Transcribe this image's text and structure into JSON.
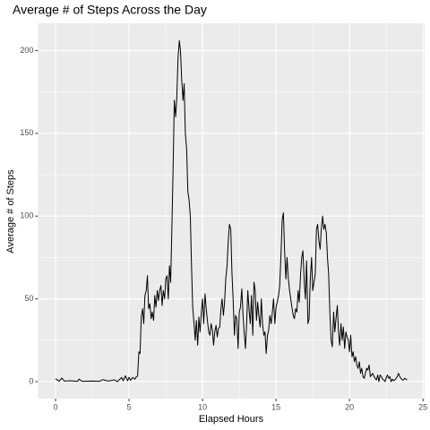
{
  "chart_data": {
    "type": "line",
    "title": "Average # of Steps Across the Day",
    "xlabel": "Elapsed Hours",
    "ylabel": "Average # of Steps",
    "x": [
      0,
      0.25,
      0.42,
      0.6,
      1.0,
      1.5,
      1.6,
      1.8,
      2.5,
      3.0,
      3.2,
      3.6,
      4.0,
      4.2,
      4.5,
      4.6,
      4.75,
      4.9,
      5.0,
      5.1,
      5.25,
      5.4,
      5.5,
      5.58,
      5.67,
      5.75,
      5.83,
      5.92,
      6.0,
      6.08,
      6.17,
      6.25,
      6.33,
      6.42,
      6.5,
      6.58,
      6.67,
      6.75,
      6.83,
      6.92,
      7.0,
      7.08,
      7.17,
      7.25,
      7.33,
      7.42,
      7.5,
      7.58,
      7.67,
      7.75,
      7.83,
      7.92,
      8.0,
      8.08,
      8.17,
      8.25,
      8.33,
      8.42,
      8.5,
      8.58,
      8.67,
      8.75,
      8.83,
      8.92,
      9.0,
      9.08,
      9.17,
      9.25,
      9.33,
      9.42,
      9.5,
      9.58,
      9.67,
      9.75,
      9.83,
      9.92,
      10.0,
      10.08,
      10.17,
      10.25,
      10.33,
      10.42,
      10.5,
      10.58,
      10.67,
      10.75,
      10.83,
      10.92,
      11.0,
      11.08,
      11.17,
      11.25,
      11.33,
      11.42,
      11.5,
      11.58,
      11.67,
      11.75,
      11.83,
      11.92,
      12.0,
      12.08,
      12.17,
      12.25,
      12.33,
      12.42,
      12.5,
      12.58,
      12.67,
      12.75,
      12.83,
      12.92,
      13.0,
      13.08,
      13.17,
      13.25,
      13.33,
      13.42,
      13.5,
      13.58,
      13.67,
      13.75,
      13.83,
      13.92,
      14.0,
      14.08,
      14.17,
      14.25,
      14.33,
      14.42,
      14.5,
      14.58,
      14.67,
      14.75,
      14.83,
      14.92,
      15.0,
      15.08,
      15.17,
      15.25,
      15.33,
      15.42,
      15.5,
      15.58,
      15.67,
      15.75,
      15.83,
      15.92,
      16.0,
      16.08,
      16.17,
      16.25,
      16.33,
      16.42,
      16.5,
      16.58,
      16.67,
      16.75,
      16.83,
      16.92,
      17.0,
      17.08,
      17.17,
      17.25,
      17.33,
      17.42,
      17.5,
      17.58,
      17.67,
      17.75,
      17.83,
      17.92,
      18.0,
      18.08,
      18.17,
      18.25,
      18.33,
      18.42,
      18.5,
      18.58,
      18.67,
      18.75,
      18.83,
      18.92,
      19.0,
      19.08,
      19.17,
      19.25,
      19.33,
      19.42,
      19.5,
      19.58,
      19.67,
      19.75,
      19.83,
      19.92,
      20.0,
      20.08,
      20.17,
      20.25,
      20.33,
      20.42,
      20.5,
      20.58,
      20.67,
      20.75,
      20.83,
      20.92,
      21.0,
      21.08,
      21.17,
      21.25,
      21.33,
      21.42,
      21.5,
      21.58,
      21.67,
      21.75,
      21.83,
      21.92,
      22.0,
      22.08,
      22.17,
      22.25,
      22.33,
      22.42,
      22.5,
      22.58,
      22.67,
      22.75,
      22.83,
      22.92,
      23.0,
      23.08,
      23.17,
      23.25,
      23.33,
      23.42,
      23.5,
      23.58,
      23.67,
      23.75,
      23.83,
      23.92
    ],
    "series": [
      {
        "name": "Average # of Steps",
        "color": "#000000",
        "values": [
          1.7,
          0.2,
          2.2,
          0.3,
          0.5,
          0.2,
          1.5,
          0.2,
          0.3,
          0.2,
          1.2,
          0.3,
          1.1,
          0,
          2.5,
          0.5,
          3.5,
          0.5,
          2.6,
          0.8,
          2.5,
          1.5,
          3.0,
          3.2,
          18,
          17,
          39,
          44,
          35,
          52,
          55,
          64,
          44,
          47,
          38,
          42,
          37,
          52,
          45,
          55,
          49,
          55,
          58,
          46,
          55,
          50,
          62,
          64,
          50,
          70,
          60,
          95,
          130,
          170,
          160,
          172,
          195,
          206,
          200,
          183,
          170,
          180,
          150,
          140,
          115,
          110,
          100,
          70,
          45,
          35,
          25,
          37,
          22,
          39,
          30,
          42,
          50,
          35,
          53,
          44,
          37,
          30,
          28,
          35,
          31,
          22,
          30,
          34,
          27,
          32,
          33,
          44,
          50,
          40,
          48,
          62,
          70,
          85,
          95,
          92,
          66,
          50,
          28,
          40,
          38,
          20,
          42,
          45,
          56,
          41,
          30,
          20,
          35,
          55,
          43,
          35,
          52,
          28,
          60,
          55,
          37,
          48,
          40,
          33,
          50,
          35,
          28,
          30,
          17,
          28,
          31,
          40,
          35,
          42,
          50,
          35,
          45,
          48,
          52,
          58,
          75,
          98,
          102,
          80,
          62,
          75,
          63,
          55,
          50,
          45,
          40,
          38,
          44,
          42,
          55,
          48,
          65,
          75,
          79,
          60,
          50,
          73,
          35,
          38,
          62,
          75,
          55,
          60,
          65,
          92,
          95,
          85,
          80,
          92,
          100,
          92,
          95,
          90,
          75,
          65,
          40,
          25,
          21,
          42,
          30,
          38,
          46,
          30,
          22,
          35,
          25,
          33,
          20,
          30,
          27,
          25,
          18,
          28,
          15,
          18,
          12,
          15,
          10,
          8,
          12,
          5,
          8,
          3,
          2,
          5,
          8,
          7,
          10,
          3,
          4,
          5,
          3,
          2,
          1,
          4,
          0,
          4,
          3,
          1.5,
          1,
          0,
          2.5,
          4,
          2,
          3,
          0,
          1.5,
          0.5,
          1,
          2,
          3,
          5,
          3,
          2,
          1,
          1,
          2,
          1.5,
          1
        ]
      }
    ],
    "xlim": [
      -1.196,
      25.11
    ],
    "ylim": [
      -10.3,
      216.5
    ],
    "xticks": [
      0,
      5,
      10,
      15,
      20,
      25
    ],
    "yticks": [
      0,
      50,
      100,
      150,
      200
    ],
    "xminor_ticks": [
      2.5,
      7.5,
      12.5,
      17.5,
      22.5
    ],
    "yminor_ticks": [
      25,
      75,
      125,
      175
    ],
    "grid": true,
    "background": "#ebebeb"
  }
}
